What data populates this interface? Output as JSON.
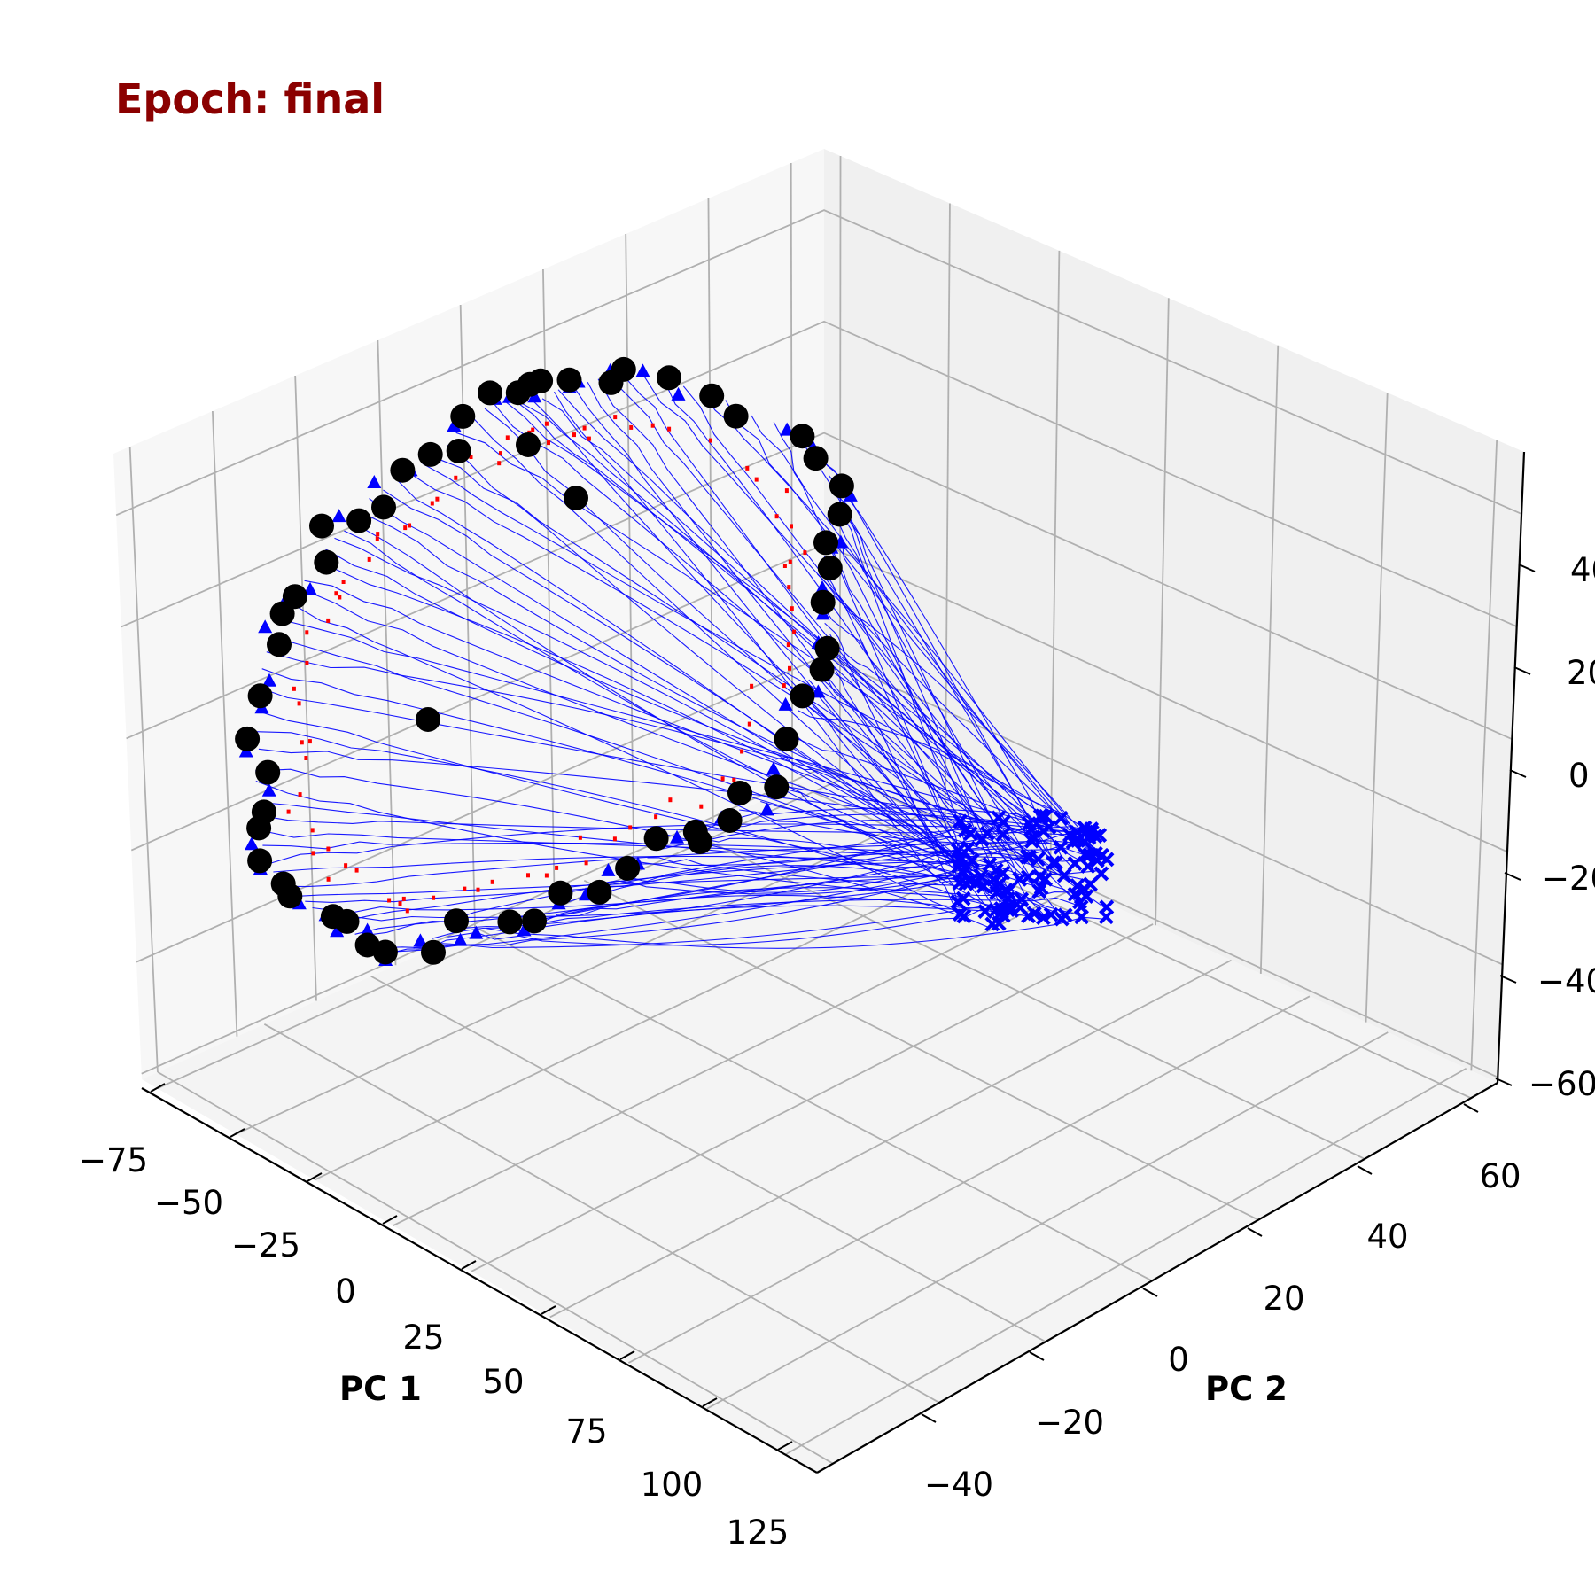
{
  "chart_data": {
    "type": "scatter",
    "title": "Epoch: final",
    "title_color": "#8b0000",
    "xlabel": "PC 1",
    "ylabel": "PC 2",
    "zlabel": "",
    "x_ticks": [
      "−75",
      "−50",
      "−25",
      "0",
      "25",
      "50",
      "75",
      "100",
      "125"
    ],
    "y_ticks": [
      "−40",
      "−20",
      "0",
      "20",
      "40",
      "60"
    ],
    "z_ticks": [
      "−60",
      "−40",
      "−20",
      "0",
      "20",
      "40"
    ],
    "xlim": [
      -80,
      130
    ],
    "ylim": [
      -50,
      70
    ],
    "zlim": [
      -60,
      50
    ],
    "grid": true,
    "colors": {
      "trajectory": "#0000ff",
      "start_marker": "#0000ff",
      "end_marker": "#000000",
      "fixed_point": "#ff0000",
      "pane": "#f2f2f2",
      "grid": "#b0b0b0"
    },
    "series": [
      {
        "marker": "x",
        "color": "#0000ff"
      },
      {
        "marker": "triangle",
        "color": "#0000ff"
      },
      {
        "marker": "circle",
        "color": "#000000"
      },
      {
        "marker": "dotted-line",
        "color": "#ff0000"
      }
    ]
  }
}
